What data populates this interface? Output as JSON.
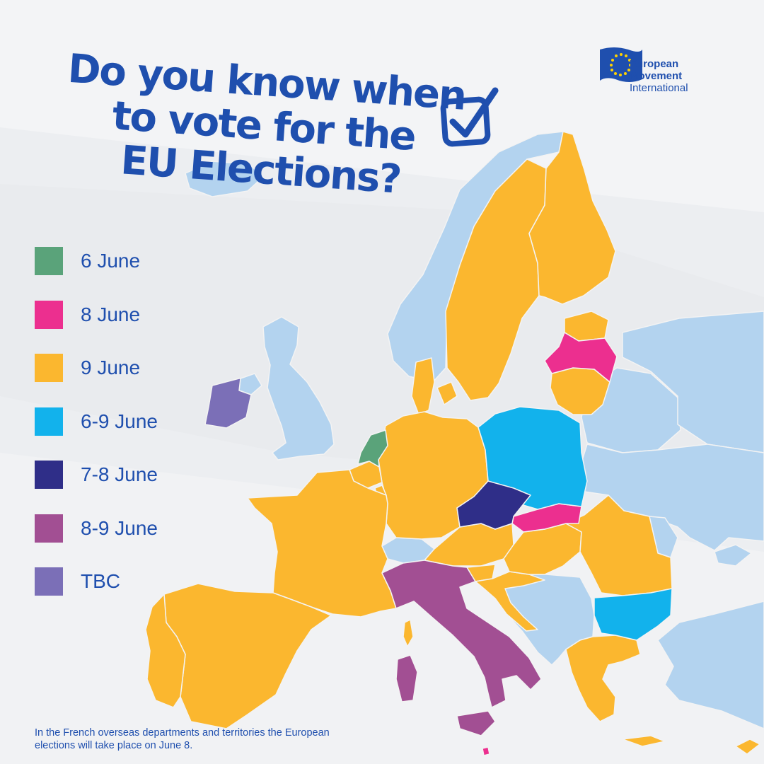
{
  "headline": {
    "lines": [
      "Do you know when",
      "to vote for the",
      "EU Elections?"
    ]
  },
  "logo": {
    "line1": "European",
    "line2": "Movement",
    "line3": "International"
  },
  "legend": [
    {
      "label": "6 June",
      "color": "#5aa37a"
    },
    {
      "label": "8 June",
      "color": "#ec2f8f"
    },
    {
      "label": "9 June",
      "color": "#fbb72f"
    },
    {
      "label": "6-9 June",
      "color": "#12b2ec"
    },
    {
      "label": "7-8 June",
      "color": "#2f2e88"
    },
    {
      "label": "8-9 June",
      "color": "#a24f93"
    },
    {
      "label": "TBC",
      "color": "#7b6fb7"
    }
  ],
  "colors": {
    "non_eu": "#b3d3ef",
    "border": "#f3f3f3",
    "text": "#1f4fae",
    "eu_flag": "#1f4fae",
    "eu_stars": "#ffd200"
  },
  "countries": [
    {
      "name": "Netherlands",
      "date": "6 June"
    },
    {
      "name": "Latvia",
      "date": "8 June"
    },
    {
      "name": "Slovakia",
      "date": "8 June"
    },
    {
      "name": "Sweden",
      "date": "9 June"
    },
    {
      "name": "Finland",
      "date": "9 June"
    },
    {
      "name": "Estonia",
      "date": "9 June"
    },
    {
      "name": "Lithuania",
      "date": "9 June"
    },
    {
      "name": "Denmark",
      "date": "9 June"
    },
    {
      "name": "Germany",
      "date": "9 June"
    },
    {
      "name": "Belgium",
      "date": "9 June"
    },
    {
      "name": "Luxembourg",
      "date": "9 June"
    },
    {
      "name": "France",
      "date": "9 June"
    },
    {
      "name": "Spain",
      "date": "9 June"
    },
    {
      "name": "Portugal",
      "date": "9 June"
    },
    {
      "name": "Austria",
      "date": "9 June"
    },
    {
      "name": "Slovenia",
      "date": "9 June"
    },
    {
      "name": "Croatia",
      "date": "9 June"
    },
    {
      "name": "Hungary",
      "date": "9 June"
    },
    {
      "name": "Romania",
      "date": "9 June"
    },
    {
      "name": "Greece",
      "date": "9 June"
    },
    {
      "name": "Cyprus",
      "date": "9 June"
    },
    {
      "name": "Poland",
      "date": "6-9 June"
    },
    {
      "name": "Bulgaria",
      "date": "6-9 June"
    },
    {
      "name": "Czech Republic",
      "date": "7-8 June"
    },
    {
      "name": "Italy",
      "date": "8-9 June"
    },
    {
      "name": "Malta",
      "date": "8 June"
    },
    {
      "name": "Ireland",
      "date": "TBC"
    }
  ],
  "footnote": "In the French overseas departments and territories the European elections will take place on June 8."
}
